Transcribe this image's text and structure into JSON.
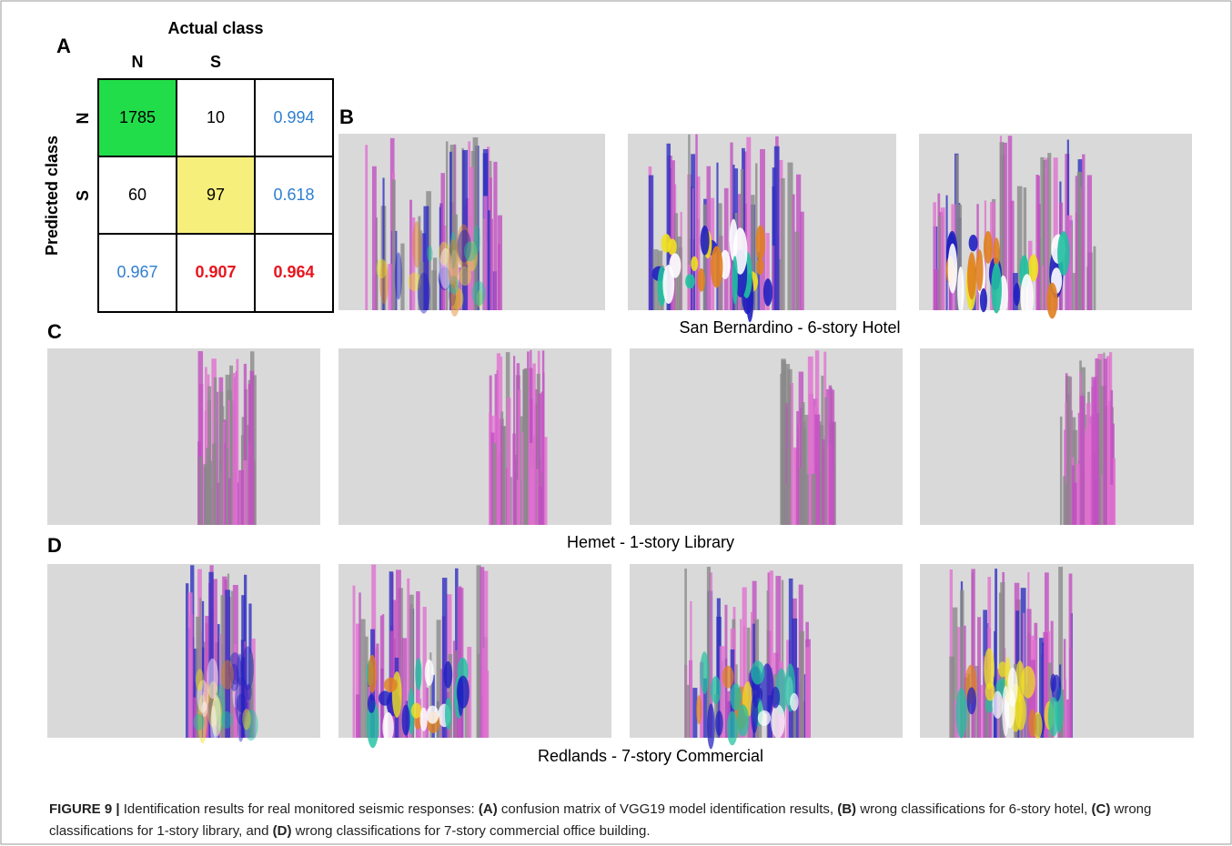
{
  "panels": {
    "a": "A",
    "b": "B",
    "c": "C",
    "d": "D"
  },
  "confusion_matrix": {
    "column_header": "Actual class",
    "row_header": "Predicted class",
    "columns": [
      "N",
      "S"
    ],
    "rows": [
      "N",
      "S"
    ],
    "cells": [
      [
        1785,
        10,
        0.994
      ],
      [
        60,
        97,
        0.618
      ],
      [
        0.967,
        0.907,
        0.964
      ]
    ]
  },
  "captions": {
    "b": "San Bernardino - 6-story Hotel",
    "c": "Hemet - 1-story Library",
    "d": "Redlands - 7-story Commercial"
  },
  "figure_caption": {
    "label": "FIGURE 9 |",
    "parts": [
      "Identification results for real monitored seismic responses: ",
      "(A)",
      " confusion matrix of VGG19 model identification results, ",
      "(B)",
      " wrong classifications for 6-story hotel, ",
      "(C)",
      " wrong classifications for 1-story library, and ",
      "(D)",
      " wrong classifications for 7-story commercial office building."
    ]
  }
}
